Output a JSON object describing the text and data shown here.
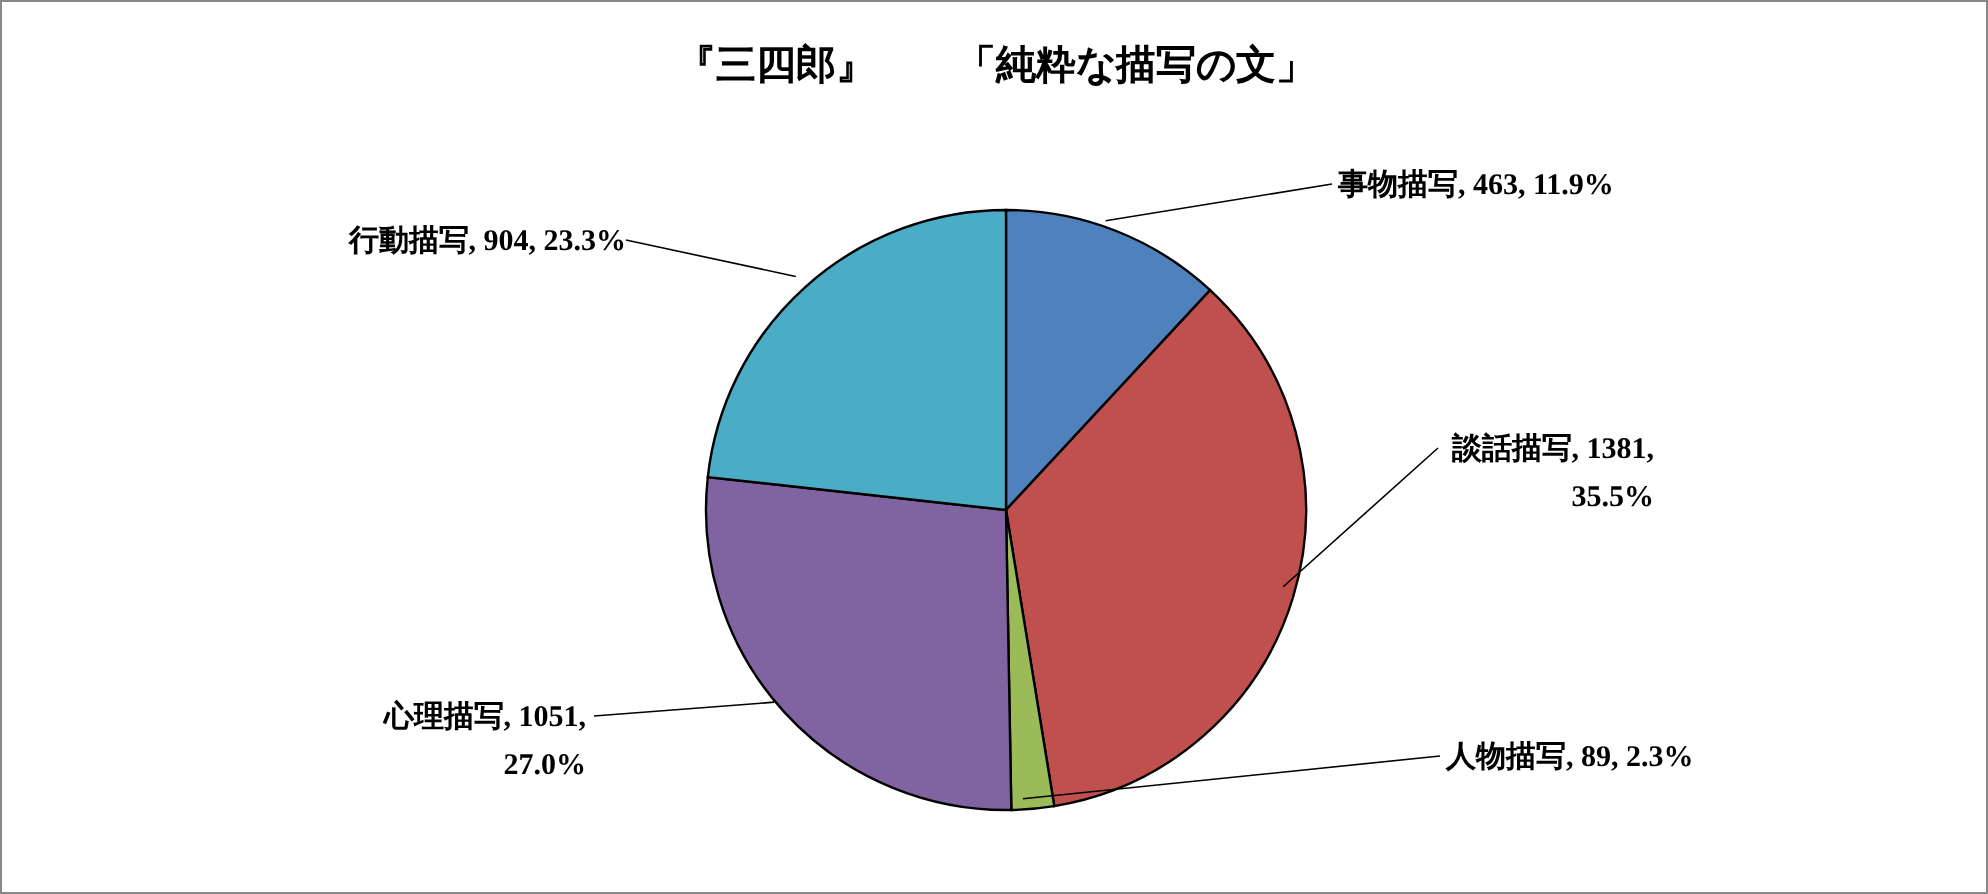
{
  "chart_data": {
    "type": "pie",
    "title": "『三四郎』　　「純粋な描写の文」",
    "categories": [
      "事物描写",
      "談話描写",
      "人物描写",
      "心理描写",
      "行動描写"
    ],
    "values": [
      463,
      1381,
      89,
      1051,
      904
    ],
    "value_labels": [
      "463, 11.9%",
      "1381, 35.5%",
      "89, 2.3%",
      "1051, 27.0%",
      "904, 23.3%"
    ],
    "colors": [
      "#4f81bd",
      "#c0504d",
      "#9bbb59",
      "#8064a2",
      "#4bacc6"
    ],
    "legend": false
  }
}
